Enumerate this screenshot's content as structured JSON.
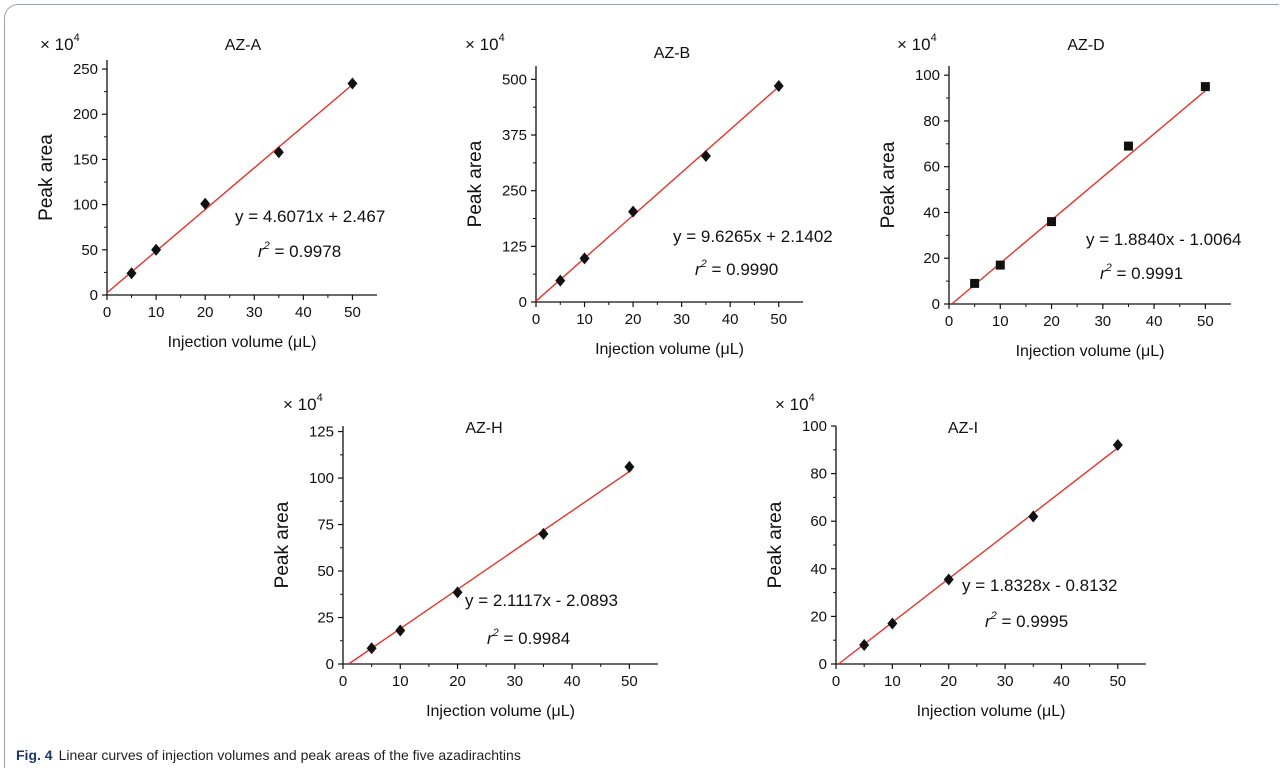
{
  "figure": {
    "label": "Fig. 4",
    "caption": "Linear curves of injection volumes and peak areas of the five azadirachtins"
  },
  "chart_data": [
    {
      "type": "scatter",
      "title": "AZ-A",
      "xlabel": "Injection volume (μL)",
      "ylabel": "Peak area",
      "multiplier_base": "× 10",
      "multiplier_exp": "4",
      "xlim": [
        0,
        55
      ],
      "ylim": [
        0,
        260
      ],
      "xticks": [
        0,
        10,
        20,
        30,
        40,
        50
      ],
      "yticks": [
        0,
        50,
        100,
        150,
        200,
        250
      ],
      "x": [
        5,
        10,
        20,
        35,
        50
      ],
      "y": [
        24,
        50,
        101,
        158,
        234
      ],
      "fit": {
        "slope": 4.6071,
        "intercept": 2.467
      },
      "equation": "y = 4.6071x + 2.467",
      "r2_prefix": "r",
      "r2_sup": "2",
      "r2_value": " = 0.9978",
      "marker": "diamond",
      "marker_color": "#111111",
      "line_color": "#e8322a"
    },
    {
      "type": "scatter",
      "title": "AZ-B",
      "xlabel": "Injection volume (μL)",
      "ylabel": "Peak area",
      "multiplier_base": "× 10",
      "multiplier_exp": "4",
      "xlim": [
        0,
        55
      ],
      "ylim": [
        0,
        530
      ],
      "xticks": [
        0,
        10,
        20,
        30,
        40,
        50
      ],
      "yticks": [
        0,
        125,
        250,
        375,
        500
      ],
      "x": [
        5,
        10,
        20,
        35,
        50
      ],
      "y": [
        48,
        98,
        203,
        328,
        485
      ],
      "fit": {
        "slope": 9.6265,
        "intercept": 2.1402
      },
      "equation": "y = 9.6265x + 2.1402",
      "r2_prefix": "r",
      "r2_sup": "2",
      "r2_value": " = 0.9990",
      "marker": "diamond",
      "marker_color": "#111111",
      "line_color": "#e8322a"
    },
    {
      "type": "scatter",
      "title": "AZ-D",
      "xlabel": "Injection volume (μL)",
      "ylabel": "Peak area",
      "multiplier_base": "× 10",
      "multiplier_exp": "4",
      "xlim": [
        0,
        55
      ],
      "ylim": [
        0,
        104
      ],
      "xticks": [
        0,
        10,
        20,
        30,
        40,
        50
      ],
      "yticks": [
        0,
        20,
        40,
        60,
        80,
        100
      ],
      "x": [
        5,
        10,
        20,
        35,
        50
      ],
      "y": [
        9,
        17,
        36,
        69,
        95
      ],
      "fit": {
        "slope": 1.884,
        "intercept": -1.0064
      },
      "equation": "y = 1.8840x - 1.0064",
      "r2_prefix": "r",
      "r2_sup": "2",
      "r2_value": " = 0.9991",
      "marker": "square",
      "marker_color": "#111111",
      "line_color": "#e8322a"
    },
    {
      "type": "scatter",
      "title": "AZ-H",
      "xlabel": "Injection volume (μL)",
      "ylabel": "Peak area",
      "multiplier_base": "× 10",
      "multiplier_exp": "4",
      "xlim": [
        0,
        55
      ],
      "ylim": [
        0,
        128
      ],
      "xticks": [
        0,
        10,
        20,
        30,
        40,
        50
      ],
      "yticks": [
        0,
        25,
        50,
        75,
        100,
        125
      ],
      "x": [
        5,
        10,
        20,
        35,
        50
      ],
      "y": [
        8.5,
        18,
        38.5,
        70,
        106
      ],
      "fit": {
        "slope": 2.1117,
        "intercept": -2.0893
      },
      "equation": "y = 2.1117x - 2.0893",
      "r2_prefix": "r",
      "r2_sup": "2",
      "r2_value": " = 0.9984",
      "marker": "diamond",
      "marker_color": "#111111",
      "line_color": "#e8322a"
    },
    {
      "type": "scatter",
      "title": "AZ-I",
      "xlabel": "Injection volume (μL)",
      "ylabel": "Peak area",
      "multiplier_base": "× 10",
      "multiplier_exp": "4",
      "xlim": [
        0,
        55
      ],
      "ylim": [
        0,
        100
      ],
      "xticks": [
        0,
        10,
        20,
        30,
        40,
        50
      ],
      "yticks": [
        0,
        20,
        40,
        60,
        80,
        100
      ],
      "x": [
        5,
        10,
        20,
        35,
        50
      ],
      "y": [
        8,
        17,
        35.5,
        62,
        92
      ],
      "fit": {
        "slope": 1.8328,
        "intercept": -0.8132
      },
      "equation": "y = 1.8328x - 0.8132",
      "r2_prefix": "r",
      "r2_sup": "2",
      "r2_value": " = 0.9995",
      "marker": "diamond",
      "marker_color": "#111111",
      "line_color": "#e8322a"
    }
  ]
}
